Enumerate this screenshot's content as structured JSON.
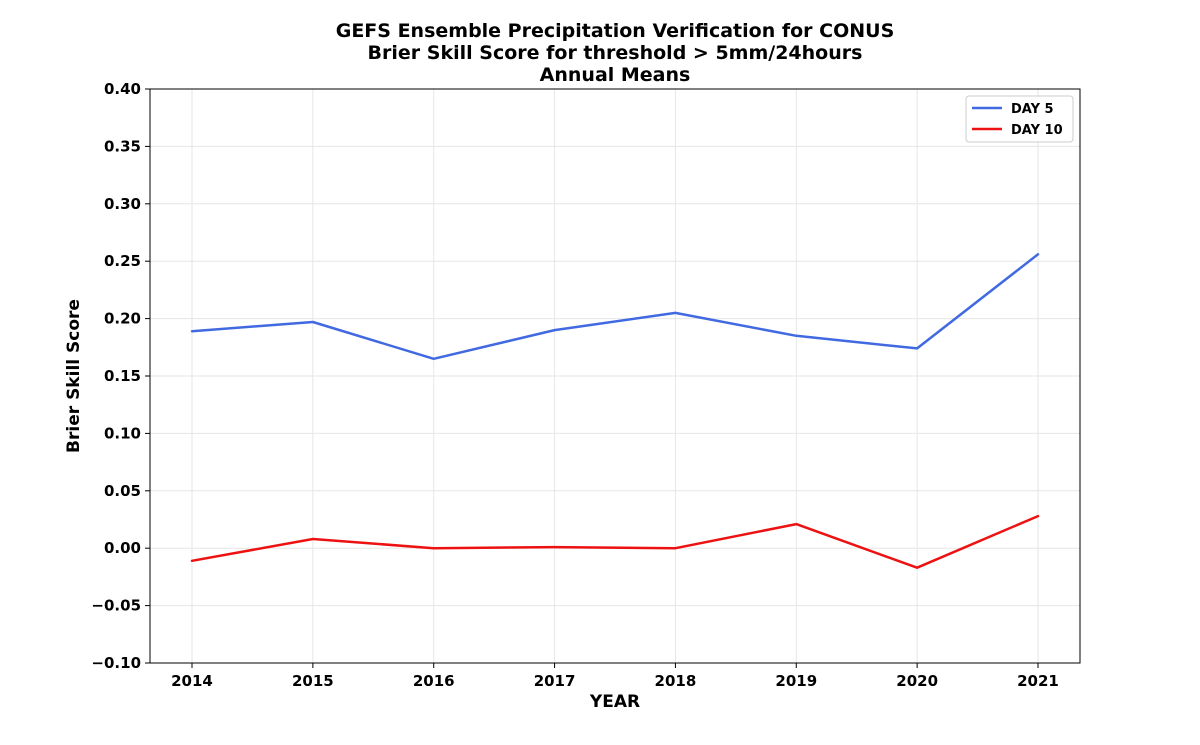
{
  "chart_data": {
    "type": "line",
    "title": [
      "GEFS Ensemble Precipitation Verification for CONUS",
      "Brier Skill Score for threshold > 5mm/24hours",
      "Annual Means"
    ],
    "xlabel": "YEAR",
    "ylabel": "Brier Skill Score",
    "x": [
      "2014",
      "2015",
      "2016",
      "2017",
      "2018",
      "2019",
      "2020",
      "2021"
    ],
    "ylim": [
      -0.1,
      0.4
    ],
    "yticks": [
      "-0.10",
      "-0.05",
      "0.00",
      "0.05",
      "0.10",
      "0.15",
      "0.20",
      "0.25",
      "0.30",
      "0.35",
      "0.40"
    ],
    "grid": true,
    "legend_position": "top-right",
    "series": [
      {
        "name": "DAY 5",
        "color": "#4169e1",
        "values": [
          0.189,
          0.197,
          0.165,
          0.19,
          0.205,
          0.185,
          0.174,
          0.256
        ]
      },
      {
        "name": "DAY 10",
        "color": "#ee1111",
        "values": [
          -0.011,
          0.008,
          0.0,
          0.001,
          0.0,
          0.021,
          -0.017,
          0.028
        ]
      }
    ]
  }
}
